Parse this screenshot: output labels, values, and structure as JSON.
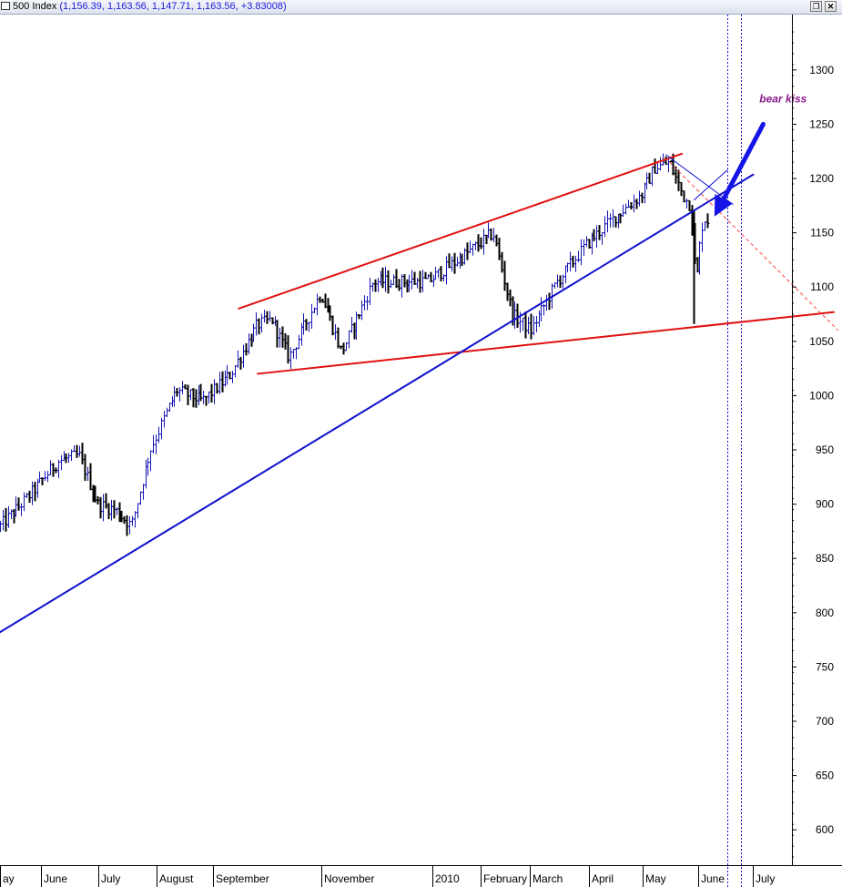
{
  "window": {
    "title_prefix": "500 Index",
    "title_values": "(1,156.39, 1,163.56, 1,147.71, 1,163.56, +3.83008)"
  },
  "chart_data": {
    "type": "candlestick",
    "title": "500 Index",
    "ohlc_header": "(1,156.39, 1,163.56, 1,147.71, 1,163.56, +3.83008)",
    "ylim": [
      575,
      1340
    ],
    "yticks": [
      600,
      650,
      700,
      750,
      800,
      850,
      900,
      950,
      1000,
      1050,
      1100,
      1150,
      1200,
      1250,
      1300
    ],
    "y_axis_side": "right",
    "grid": false,
    "x_tick_labels": [
      "ay",
      "June",
      "July",
      "August",
      "September",
      "November",
      "2010",
      "February",
      "March",
      "April",
      "May",
      "June",
      "July"
    ],
    "series": [
      {
        "name": "",
        "color": "#1414b4",
        "x": [
          "2009-05-01",
          "2009-05-15",
          "2009-06-01",
          "2009-06-12",
          "2009-06-22",
          "2009-07-01",
          "2009-07-10",
          "2009-07-20",
          "2009-08-03",
          "2009-08-17",
          "2009-09-01",
          "2009-09-15",
          "2009-09-23",
          "2009-10-02",
          "2009-10-19",
          "2009-10-30",
          "2009-11-16",
          "2009-12-01",
          "2009-12-15",
          "2010-01-04",
          "2010-01-19",
          "2010-01-29",
          "2010-02-08",
          "2010-02-22",
          "2010-03-10",
          "2010-03-25",
          "2010-04-08",
          "2010-04-15",
          "2010-04-23",
          "2010-04-30",
          "2010-05-04",
          "2010-05-06",
          "2010-05-07",
          "2010-05-10",
          "2010-05-12",
          "2010-05-13",
          "2010-05-14"
        ],
        "close": [
          880,
          905,
          940,
          945,
          900,
          895,
          880,
          950,
          1005,
          995,
          1020,
          1065,
          1070,
          1035,
          1095,
          1040,
          1105,
          1105,
          1105,
          1130,
          1150,
          1075,
          1060,
          1105,
          1140,
          1165,
          1185,
          1210,
          1215,
          1185,
          1175,
          1130,
          1100,
          1155,
          1163,
          1160,
          1163.56
        ]
      }
    ],
    "annotations": [
      {
        "type": "trendline",
        "color": "#e01010",
        "x": [
          "2009-09-05",
          "2010-04-30"
        ],
        "y": [
          1080,
          1223
        ],
        "role": "upper wedge line"
      },
      {
        "type": "trendline",
        "color": "#e01010",
        "x": [
          "2009-09-15",
          "2010-07-20"
        ],
        "y": [
          1020,
          1077
        ],
        "role": "lower wedge line"
      },
      {
        "type": "trendline",
        "color": "#1010d0",
        "x": [
          "2009-03-20",
          "2010-06-07"
        ],
        "y": [
          738,
          1204
        ],
        "role": "rising support line"
      },
      {
        "type": "trendline",
        "color": "#ff4040",
        "style": "dashed",
        "x": [
          "2010-04-23",
          "2010-07-22"
        ],
        "y": [
          1215,
          1060
        ],
        "role": "projected decline"
      },
      {
        "type": "trendline",
        "color": "#1010d0",
        "style": "thin",
        "x": [
          "2010-04-21",
          "2010-05-27"
        ],
        "y": [
          1222,
          1176
        ]
      },
      {
        "type": "trendline",
        "color": "#1010d0",
        "style": "thin",
        "x": [
          "2010-05-06",
          "2010-05-24"
        ],
        "y": [
          1180,
          1208
        ]
      },
      {
        "type": "vline",
        "color": "#1010d0",
        "style": "dotted",
        "x": "2010-05-24"
      },
      {
        "type": "vline",
        "color": "#1010d0",
        "style": "dotted",
        "x": "2010-05-31"
      },
      {
        "type": "arrow",
        "color": "#1414e6",
        "from": [
          "2010-06-12",
          1250
        ],
        "to": [
          "2010-05-17",
          1165
        ]
      },
      {
        "type": "text",
        "text": "bear kiss",
        "color": "#8b1a8b",
        "x": "2010-06-10",
        "y": 1270
      }
    ]
  }
}
